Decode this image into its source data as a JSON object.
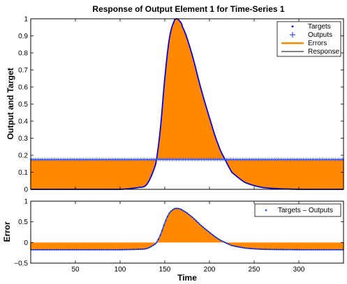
{
  "chart_data": [
    {
      "type": "line",
      "title": "Response of Output Element 1 for Time-Series 1",
      "xlabel": "",
      "ylabel": "Output and Target",
      "xlim": [
        0,
        350
      ],
      "ylim": [
        0,
        1
      ],
      "xticks": [
        50,
        100,
        150,
        200,
        250,
        300
      ],
      "yticks": [
        0,
        0.1,
        0.2,
        0.3,
        0.4,
        0.5,
        0.6,
        0.7,
        0.8,
        0.9,
        1
      ],
      "ytick_labels": [
        "0",
        "0.1",
        "0.2",
        "0.3",
        "0.4",
        "0.5",
        "0.6",
        "0.7",
        "0.8",
        "0.9",
        "1"
      ],
      "grid": false,
      "legend_position": "top-right",
      "colors": {
        "targets": "#0000ff",
        "outputs": "#3355ff",
        "errors": "#ff8800",
        "response": "#000000"
      },
      "series": [
        {
          "name": "Targets",
          "marker": "dot",
          "x": [
            0,
            100,
            120,
            130,
            140,
            145,
            150,
            155,
            160,
            163,
            166,
            170,
            180,
            190,
            200,
            210,
            218,
            225,
            240,
            260,
            300,
            350
          ],
          "y": [
            0,
            0.0,
            0.01,
            0.03,
            0.15,
            0.35,
            0.65,
            0.88,
            0.98,
            1.0,
            0.99,
            0.95,
            0.8,
            0.6,
            0.42,
            0.26,
            0.17,
            0.1,
            0.04,
            0.01,
            0.0,
            0.0
          ]
        },
        {
          "name": "Outputs",
          "marker": "plus",
          "x": [
            0,
            350
          ],
          "y": [
            0.175,
            0.175
          ]
        },
        {
          "name": "Errors",
          "marker": "none"
        },
        {
          "name": "Response",
          "marker": "none"
        }
      ]
    },
    {
      "type": "line",
      "title": "",
      "xlabel": "Time",
      "ylabel": "Error",
      "xlim": [
        0,
        350
      ],
      "ylim": [
        -0.5,
        1
      ],
      "xticks": [
        50,
        100,
        150,
        200,
        250,
        300
      ],
      "yticks": [
        -0.5,
        0,
        0.5,
        1
      ],
      "ytick_labels": [
        "−0.5",
        "0",
        "0.5",
        "1"
      ],
      "grid": false,
      "legend_position": "top-right",
      "colors": {
        "errors": "#ff8800",
        "points": "#3355ff"
      },
      "series": [
        {
          "name": "Targets – Outputs",
          "marker": "dot",
          "x": [
            0,
            100,
            120,
            130,
            140,
            145,
            150,
            155,
            160,
            163,
            166,
            170,
            180,
            190,
            200,
            210,
            218,
            225,
            240,
            260,
            300,
            350
          ],
          "y": [
            -0.175,
            -0.175,
            -0.165,
            -0.145,
            -0.025,
            0.175,
            0.475,
            0.705,
            0.805,
            0.825,
            0.815,
            0.775,
            0.625,
            0.425,
            0.245,
            0.085,
            -0.005,
            -0.075,
            -0.135,
            -0.165,
            -0.175,
            -0.175
          ]
        }
      ]
    }
  ]
}
